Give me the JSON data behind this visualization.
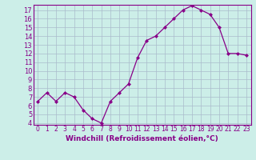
{
  "x": [
    0,
    1,
    2,
    3,
    4,
    5,
    6,
    7,
    8,
    9,
    10,
    11,
    12,
    13,
    14,
    15,
    16,
    17,
    18,
    19,
    20,
    21,
    22,
    23
  ],
  "y": [
    6.5,
    7.5,
    6.5,
    7.5,
    7.0,
    5.5,
    4.5,
    4.0,
    6.5,
    7.5,
    8.5,
    11.5,
    13.5,
    14.0,
    15.0,
    16.0,
    17.0,
    17.5,
    17.0,
    16.5,
    15.0,
    12.0,
    12.0,
    11.8
  ],
  "line_color": "#990099",
  "marker": "D",
  "marker_size": 2,
  "linewidth": 0.9,
  "xlabel": "Windchill (Refroidissement éolien,°C)",
  "ylim": [
    3.8,
    17.6
  ],
  "xlim": [
    -0.5,
    23.5
  ],
  "yticks": [
    4,
    5,
    6,
    7,
    8,
    9,
    10,
    11,
    12,
    13,
    14,
    15,
    16,
    17
  ],
  "xticks": [
    0,
    1,
    2,
    3,
    4,
    5,
    6,
    7,
    8,
    9,
    10,
    11,
    12,
    13,
    14,
    15,
    16,
    17,
    18,
    19,
    20,
    21,
    22,
    23
  ],
  "background_color": "#cceee8",
  "grid_color": "#aabbcc",
  "line_tick_color": "#880088",
  "xlabel_fontsize": 6.5,
  "ytick_fontsize": 6,
  "xtick_fontsize": 5.5
}
